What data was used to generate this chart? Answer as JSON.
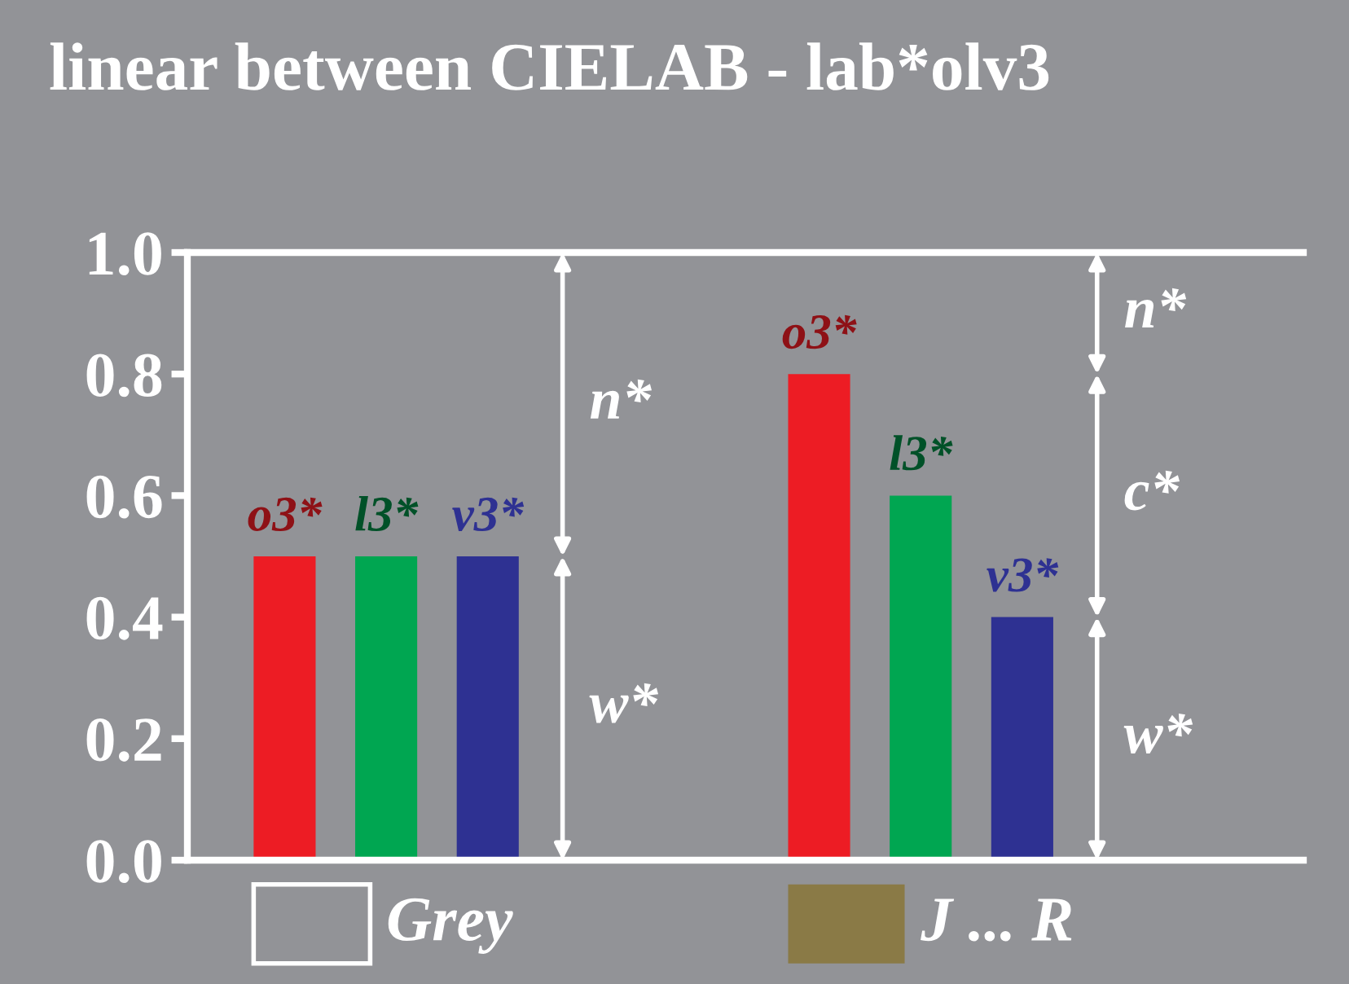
{
  "chart_data": {
    "type": "bar",
    "title": "linear between CIELAB - lab*olv3",
    "categories": [
      "Grey",
      "J ... R"
    ],
    "series": [
      {
        "name": "o3*",
        "color": "#ed1c24",
        "values": [
          0.5,
          0.8
        ]
      },
      {
        "name": "l3*",
        "color": "#00a651",
        "values": [
          0.5,
          0.6
        ]
      },
      {
        "name": "v3*",
        "color": "#2e3192",
        "values": [
          0.5,
          0.4
        ]
      }
    ],
    "ylim": [
      0,
      1.0
    ],
    "yticks": [
      {
        "value": 0,
        "label": "0.0"
      },
      {
        "value": 0.2,
        "label": "0.2"
      },
      {
        "value": 0.4,
        "label": "0.4"
      },
      {
        "value": 0.6,
        "label": "0.6"
      },
      {
        "value": 0.8,
        "label": "0.8"
      },
      {
        "value": 1.0,
        "label": "1.0"
      }
    ],
    "annotations": [
      "n*",
      "w*",
      "n*",
      "c*",
      "w*"
    ],
    "tick_labels": "y",
    "grid": false
  }
}
